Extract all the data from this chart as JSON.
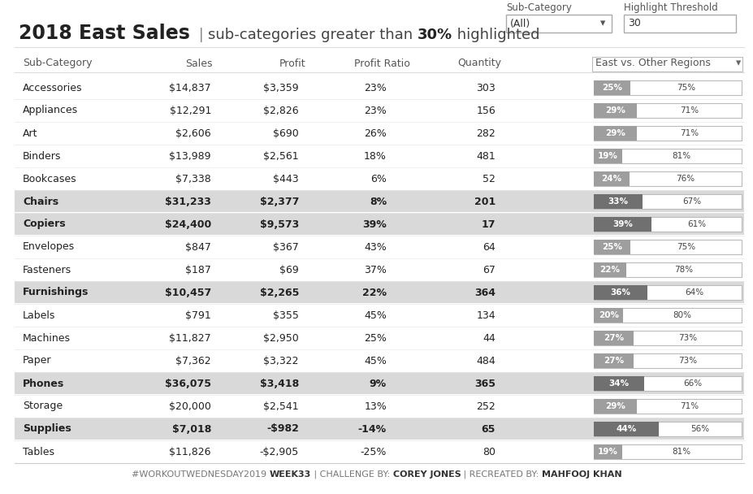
{
  "title_bold": "2018 East Sales",
  "title_sep": " | ",
  "title_normal": "sub-categories greater than ",
  "title_bold2": "30%",
  "title_normal2": " highlighted",
  "sub_category_label": "Sub-Category",
  "highlight_threshold_label": "Highlight Threshold",
  "dropdown_value": "(All)",
  "threshold_value": "30",
  "headers": [
    "Sub-Category",
    "Sales",
    "Profit",
    "Profit Ratio",
    "Quantity",
    "East vs. Other Regions"
  ],
  "rows": [
    {
      "name": "Accessories",
      "bold": false,
      "sales": "$14,837",
      "profit": "$3,359",
      "profit_ratio": "23%",
      "quantity": "303",
      "east_pct": 25,
      "other_pct": 75
    },
    {
      "name": "Appliances",
      "bold": false,
      "sales": "$12,291",
      "profit": "$2,826",
      "profit_ratio": "23%",
      "quantity": "156",
      "east_pct": 29,
      "other_pct": 71
    },
    {
      "name": "Art",
      "bold": false,
      "sales": "$2,606",
      "profit": "$690",
      "profit_ratio": "26%",
      "quantity": "282",
      "east_pct": 29,
      "other_pct": 71
    },
    {
      "name": "Binders",
      "bold": false,
      "sales": "$13,989",
      "profit": "$2,561",
      "profit_ratio": "18%",
      "quantity": "481",
      "east_pct": 19,
      "other_pct": 81
    },
    {
      "name": "Bookcases",
      "bold": false,
      "sales": "$7,338",
      "profit": "$443",
      "profit_ratio": "6%",
      "quantity": "52",
      "east_pct": 24,
      "other_pct": 76
    },
    {
      "name": "Chairs",
      "bold": true,
      "sales": "$31,233",
      "profit": "$2,377",
      "profit_ratio": "8%",
      "quantity": "201",
      "east_pct": 33,
      "other_pct": 67
    },
    {
      "name": "Copiers",
      "bold": true,
      "sales": "$24,400",
      "profit": "$9,573",
      "profit_ratio": "39%",
      "quantity": "17",
      "east_pct": 39,
      "other_pct": 61
    },
    {
      "name": "Envelopes",
      "bold": false,
      "sales": "$847",
      "profit": "$367",
      "profit_ratio": "43%",
      "quantity": "64",
      "east_pct": 25,
      "other_pct": 75
    },
    {
      "name": "Fasteners",
      "bold": false,
      "sales": "$187",
      "profit": "$69",
      "profit_ratio": "37%",
      "quantity": "67",
      "east_pct": 22,
      "other_pct": 78
    },
    {
      "name": "Furnishings",
      "bold": true,
      "sales": "$10,457",
      "profit": "$2,265",
      "profit_ratio": "22%",
      "quantity": "364",
      "east_pct": 36,
      "other_pct": 64
    },
    {
      "name": "Labels",
      "bold": false,
      "sales": "$791",
      "profit": "$355",
      "profit_ratio": "45%",
      "quantity": "134",
      "east_pct": 20,
      "other_pct": 80
    },
    {
      "name": "Machines",
      "bold": false,
      "sales": "$11,827",
      "profit": "$2,950",
      "profit_ratio": "25%",
      "quantity": "44",
      "east_pct": 27,
      "other_pct": 73
    },
    {
      "name": "Paper",
      "bold": false,
      "sales": "$7,362",
      "profit": "$3,322",
      "profit_ratio": "45%",
      "quantity": "484",
      "east_pct": 27,
      "other_pct": 73
    },
    {
      "name": "Phones",
      "bold": true,
      "sales": "$36,075",
      "profit": "$3,418",
      "profit_ratio": "9%",
      "quantity": "365",
      "east_pct": 34,
      "other_pct": 66
    },
    {
      "name": "Storage",
      "bold": false,
      "sales": "$20,000",
      "profit": "$2,541",
      "profit_ratio": "13%",
      "quantity": "252",
      "east_pct": 29,
      "other_pct": 71
    },
    {
      "name": "Supplies",
      "bold": true,
      "sales": "$7,018",
      "profit": "-$982",
      "profit_ratio": "-14%",
      "quantity": "65",
      "east_pct": 44,
      "other_pct": 56
    },
    {
      "name": "Tables",
      "bold": false,
      "sales": "$11,826",
      "profit": "-$2,905",
      "profit_ratio": "-25%",
      "quantity": "80",
      "east_pct": 19,
      "other_pct": 81
    }
  ],
  "highlight_threshold": 30,
  "bg_color": "#ffffff",
  "bold_row_bg": "#d9d9d9",
  "border_color": "#cccccc",
  "row_sep_color": "#e8e8e8",
  "text_dark": "#222222",
  "text_med": "#555555",
  "bar_normal_color": "#9e9e9e",
  "bar_highlight_color": "#707070",
  "bar_other_bg": "#ffffff",
  "bar_border": "#bbbbbb"
}
